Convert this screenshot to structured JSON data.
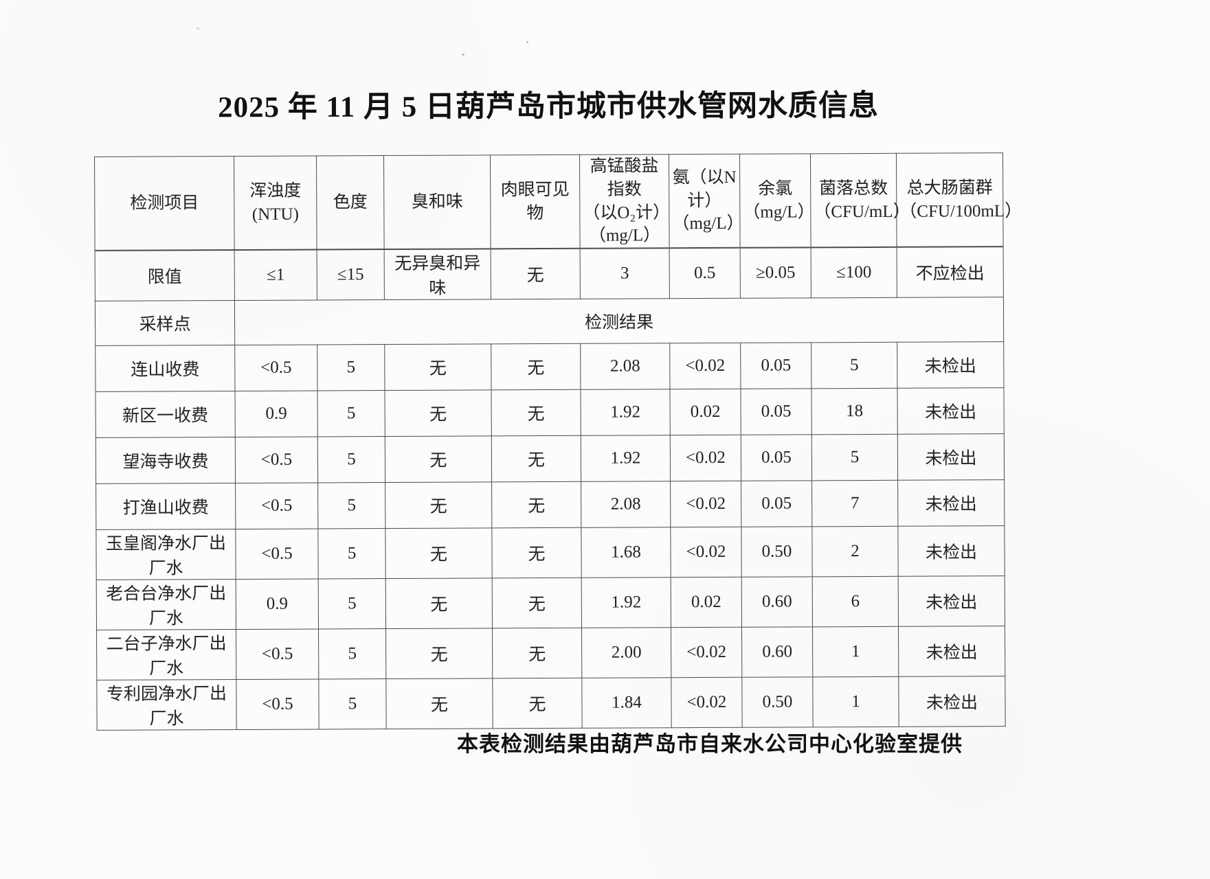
{
  "page": {
    "title": "2025 年 11 月 5 日葫芦岛市城市供水管网水质信息",
    "footer_note": "本表检测结果由葫芦岛市自来水公司中心化验室提供"
  },
  "table": {
    "headers": [
      {
        "lines": [
          "检测项目"
        ]
      },
      {
        "lines": [
          "浑浊度(NTU)"
        ]
      },
      {
        "lines": [
          "色度"
        ]
      },
      {
        "lines": [
          "臭和味"
        ]
      },
      {
        "lines": [
          "肉眼可见物"
        ]
      },
      {
        "lines": [
          "高锰酸盐指数",
          "（以O₂计）",
          "（mg/L）"
        ]
      },
      {
        "lines": [
          "氨（以N计）",
          "（mg/L）"
        ]
      },
      {
        "lines": [
          "余氯",
          "（mg/L）"
        ]
      },
      {
        "lines": [
          "菌落总数",
          "（CFU/mL）"
        ]
      },
      {
        "lines": [
          "总大肠菌群",
          "（CFU/100mL）"
        ]
      }
    ],
    "limit_row": {
      "label": "限值",
      "values": [
        "≤1",
        "≤15",
        "无异臭和异味",
        "无",
        "3",
        "0.5",
        "≥0.05",
        "≤100",
        "不应检出"
      ]
    },
    "sampling_row": {
      "label": "采样点",
      "merged_label": "检测结果"
    },
    "rows": [
      {
        "point": "连山收费",
        "values": [
          "<0.5",
          "5",
          "无",
          "无",
          "2.08",
          "<0.02",
          "0.05",
          "5",
          "未检出"
        ]
      },
      {
        "point": "新区一收费",
        "values": [
          "0.9",
          "5",
          "无",
          "无",
          "1.92",
          "0.02",
          "0.05",
          "18",
          "未检出"
        ]
      },
      {
        "point": "望海寺收费",
        "values": [
          "<0.5",
          "5",
          "无",
          "无",
          "1.92",
          "<0.02",
          "0.05",
          "5",
          "未检出"
        ]
      },
      {
        "point": "打渔山收费",
        "values": [
          "<0.5",
          "5",
          "无",
          "无",
          "2.08",
          "<0.02",
          "0.05",
          "7",
          "未检出"
        ]
      },
      {
        "point": "玉皇阁净水厂出厂水",
        "values": [
          "<0.5",
          "5",
          "无",
          "无",
          "1.68",
          "<0.02",
          "0.50",
          "2",
          "未检出"
        ]
      },
      {
        "point": "老合台净水厂出厂水",
        "values": [
          "0.9",
          "5",
          "无",
          "无",
          "1.92",
          "0.02",
          "0.60",
          "6",
          "未检出"
        ]
      },
      {
        "point": "二台子净水厂出厂水",
        "values": [
          "<0.5",
          "5",
          "无",
          "无",
          "2.00",
          "<0.02",
          "0.60",
          "1",
          "未检出"
        ]
      },
      {
        "point": "专利园净水厂出厂水",
        "values": [
          "<0.5",
          "5",
          "无",
          "无",
          "1.84",
          "<0.02",
          "0.50",
          "1",
          "未检出"
        ]
      }
    ]
  }
}
